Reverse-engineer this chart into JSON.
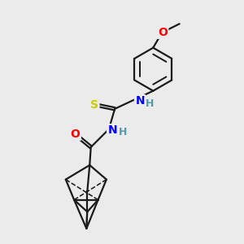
{
  "bg_color": "#ebebeb",
  "line_color": "#1a1a1a",
  "bond_width": 1.6,
  "atom_colors": {
    "O": "#ff0000",
    "N": "#0000ff",
    "S": "#cccc00",
    "H": "#5599aa",
    "C": "#1a1a1a"
  },
  "font_size_atom": 10,
  "font_size_H": 9
}
